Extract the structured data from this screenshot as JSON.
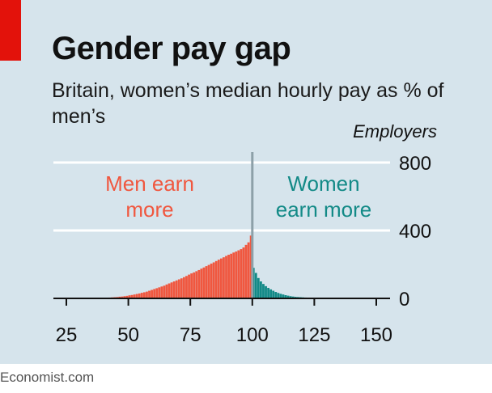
{
  "title": "Gender pay gap",
  "subtitle": "Britain, women’s median hourly pay as % of men’s",
  "footer": "Economist.com",
  "colors": {
    "background": "#d6e4ec",
    "men": "#f0573f",
    "women": "#138a87",
    "divider": "#8da0a8",
    "accent": "#e3120b"
  },
  "chart_data": {
    "type": "bar",
    "title": "Gender pay gap",
    "subtitle": "Britain, women’s median hourly pay as % of men’s",
    "xlabel": "",
    "ylabel": "Employers",
    "xlim": [
      25,
      150
    ],
    "ylim": [
      0,
      800
    ],
    "x_ticks": [
      25,
      50,
      75,
      100,
      125,
      150
    ],
    "y_ticks": [
      0,
      400,
      800
    ],
    "grid": true,
    "divider_x": 100,
    "annotations": [
      {
        "text": "Men earn more",
        "lines": [
          "Men earn",
          "more"
        ],
        "color": "#f0573f"
      },
      {
        "text": "Women earn more",
        "lines": [
          "Women",
          "earn more"
        ],
        "color": "#138a87"
      }
    ],
    "bin_width": 1,
    "series": [
      {
        "name": "Men earn more",
        "color": "#f0573f",
        "x": [
          35,
          36,
          37,
          38,
          39,
          40,
          41,
          42,
          43,
          44,
          45,
          46,
          47,
          48,
          49,
          50,
          51,
          52,
          53,
          54,
          55,
          56,
          57,
          58,
          59,
          60,
          61,
          62,
          63,
          64,
          65,
          66,
          67,
          68,
          69,
          70,
          71,
          72,
          73,
          74,
          75,
          76,
          77,
          78,
          79,
          80,
          81,
          82,
          83,
          84,
          85,
          86,
          87,
          88,
          89,
          90,
          91,
          92,
          93,
          94,
          95,
          96,
          97,
          98,
          99
        ],
        "values": [
          1,
          1,
          2,
          2,
          3,
          3,
          4,
          5,
          6,
          7,
          8,
          10,
          11,
          13,
          15,
          18,
          20,
          23,
          26,
          29,
          33,
          36,
          40,
          45,
          50,
          55,
          60,
          65,
          70,
          75,
          82,
          88,
          94,
          100,
          106,
          112,
          118,
          125,
          132,
          140,
          147,
          153,
          160,
          167,
          175,
          182,
          190,
          197,
          205,
          212,
          220,
          228,
          235,
          242,
          250,
          257,
          263,
          270,
          276,
          283,
          290,
          300,
          315,
          330,
          370
        ]
      },
      {
        "name": "Women earn more",
        "color": "#138a87",
        "x": [
          100,
          101,
          102,
          103,
          104,
          105,
          106,
          107,
          108,
          109,
          110,
          111,
          112,
          113,
          114,
          115,
          116,
          117,
          118,
          119,
          120,
          121,
          122,
          123,
          124,
          125,
          126,
          127,
          128,
          129,
          130,
          131,
          132,
          133,
          134,
          135,
          136,
          137,
          138,
          139,
          140
        ],
        "values": [
          180,
          150,
          120,
          100,
          85,
          72,
          62,
          53,
          45,
          38,
          32,
          27,
          23,
          19,
          16,
          13,
          11,
          9,
          8,
          7,
          6,
          5,
          4,
          4,
          3,
          3,
          3,
          2,
          2,
          2,
          2,
          1,
          1,
          1,
          1,
          1,
          1,
          1,
          1,
          1,
          1
        ]
      }
    ]
  }
}
